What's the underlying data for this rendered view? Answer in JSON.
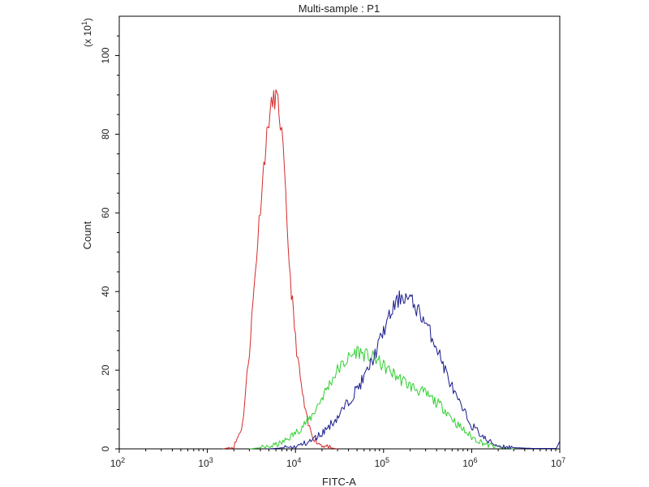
{
  "chart_data": {
    "type": "line",
    "title": "Multi-sample : P1",
    "xlabel": "FITC-A",
    "ylabel": "Count",
    "y_multiplier_label": "(x 10",
    "y_multiplier_exp": "1",
    "x_scale": "log",
    "xlim": [
      100,
      10000000
    ],
    "ylim": [
      0,
      110
    ],
    "x_ticks": [
      {
        "value": 100,
        "base": "10",
        "exp": "2"
      },
      {
        "value": 1000,
        "base": "10",
        "exp": "3"
      },
      {
        "value": 10000,
        "base": "10",
        "exp": "4"
      },
      {
        "value": 100000,
        "base": "10",
        "exp": "5"
      },
      {
        "value": 1000000,
        "base": "10",
        "exp": "6"
      },
      {
        "value": 10000000,
        "base": "10",
        "exp": "7"
      }
    ],
    "y_ticks": [
      0,
      20,
      40,
      60,
      80,
      100
    ],
    "grid": false,
    "legend": "none",
    "series": [
      {
        "color": "#d42a2a",
        "x": [
          1500,
          2000,
          2500,
          3000,
          3500,
          4000,
          4500,
          5000,
          5500,
          6000,
          6500,
          7000,
          7500,
          8000,
          9000,
          10000,
          11000,
          12000,
          13000,
          14000,
          16000,
          18000,
          20000,
          23000,
          26000,
          30000
        ],
        "y": [
          0,
          0.5,
          6,
          25,
          45,
          62,
          75,
          84,
          88,
          90,
          86,
          80,
          70,
          56,
          40,
          28,
          20,
          14,
          9,
          6,
          3,
          1.5,
          1,
          0.5,
          0.2,
          0
        ]
      },
      {
        "color": "#2fcf2f",
        "x": [
          3000,
          5000,
          7000,
          10000,
          15000,
          20000,
          25000,
          30000,
          40000,
          50000,
          60000,
          80000,
          100000,
          150000,
          200000,
          300000,
          500000,
          700000,
          1000000,
          1500000,
          2000000,
          3000000
        ],
        "y": [
          0,
          0.5,
          1.5,
          4,
          8,
          13,
          17,
          20,
          23,
          25,
          24,
          23,
          21,
          18,
          16,
          14,
          10,
          6,
          3,
          1,
          0.4,
          0
        ]
      },
      {
        "color": "#1a1a8c",
        "x": [
          5000,
          10000,
          15000,
          20000,
          30000,
          40000,
          60000,
          80000,
          100000,
          130000,
          160000,
          200000,
          250000,
          300000,
          400000,
          500000,
          700000,
          1000000,
          1500000,
          2000000,
          3000000,
          5000000,
          9000000,
          10000000
        ],
        "y": [
          0,
          0.5,
          2,
          4,
          8,
          12,
          18,
          24,
          30,
          36,
          39,
          38,
          35,
          32,
          26,
          20,
          12,
          6,
          2,
          0.8,
          0.3,
          0.1,
          0.1,
          2
        ]
      }
    ]
  }
}
